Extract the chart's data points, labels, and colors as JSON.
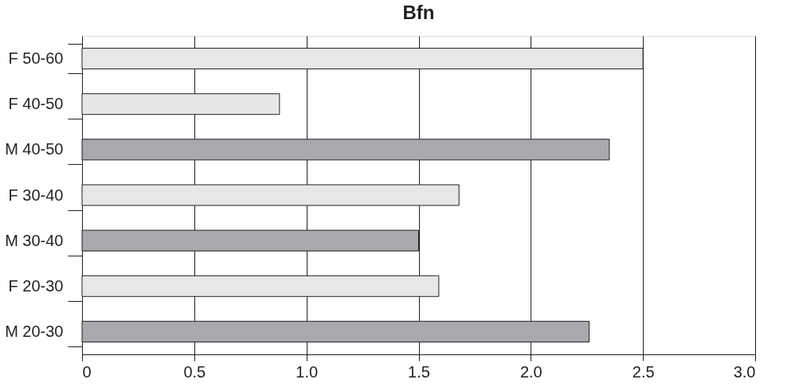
{
  "chart_data": {
    "type": "bar",
    "orientation": "horizontal",
    "title": "Bfn",
    "categories": [
      "F 50-60",
      "F 40-50",
      "M 40-50",
      "F 30-40",
      "M 30-40",
      "F 20-30",
      "M 20-30"
    ],
    "values": [
      2.5,
      0.88,
      2.35,
      1.68,
      1.5,
      1.59,
      2.26
    ],
    "colors": [
      "#e6e7e8",
      "#e6e7e8",
      "#a7a9ac",
      "#e6e7e8",
      "#a7a9ac",
      "#e6e7e8",
      "#a7a9ac"
    ],
    "xlim": [
      0,
      3
    ],
    "xticks": [
      0,
      0.5,
      {
        "value": 1,
        "label": "1.0"
      },
      1.5,
      {
        "value": 2,
        "label": "2.0"
      },
      2.5,
      {
        "value": 3,
        "label": "3.0"
      }
    ],
    "grid": "x"
  }
}
